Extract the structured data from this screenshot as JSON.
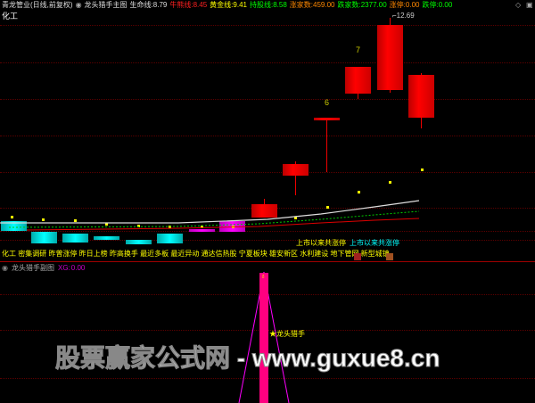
{
  "header": {
    "title": "青龙管业(日线,前复权)",
    "panel_name": "龙头猎手主图",
    "indicators": [
      {
        "label": "生命线:",
        "value": "8.79",
        "color": "#dddddd"
      },
      {
        "label": "牛熊线:",
        "value": "8.45",
        "color": "#ff2020"
      },
      {
        "label": "黄金线:",
        "value": "9.41",
        "color": "#ffff00"
      },
      {
        "label": "持股线:",
        "value": "8.58",
        "color": "#00ff00"
      },
      {
        "label": "涨家数:",
        "value": "459.00",
        "color": "#ff8800"
      },
      {
        "label": "跌家数:",
        "value": "2377.00",
        "color": "#00ff00"
      },
      {
        "label": "涨停:",
        "value": "0.00",
        "color": "#ff8800"
      },
      {
        "label": "跌停:",
        "value": "0.00",
        "color": "#00ff00"
      }
    ]
  },
  "sector": "化工",
  "chart_labels": {
    "high_price": "12.69",
    "board6": "6",
    "board7": "7"
  },
  "tags": "化工 密集调研 昨曾涨停 昨日上榜 昨高换手 最近多板 最近异动 通达信热股 宁夏板块 雄安新区 水利建设 地下管网 新型城镇",
  "limit_up_yellow": "上市以来共涨停",
  "limit_up_cyan": "上市以来共涨停",
  "sub_panel": {
    "name": "龙头猎手副图",
    "xg_label": "XG:",
    "xg_value": "0.00",
    "signal": "★龙头猎手"
  },
  "watermark": "股票赢家公式网 - www.guxue8.cn",
  "colors": {
    "up": "#ff0000",
    "down": "#00ffff",
    "separator": "#a00000"
  }
}
